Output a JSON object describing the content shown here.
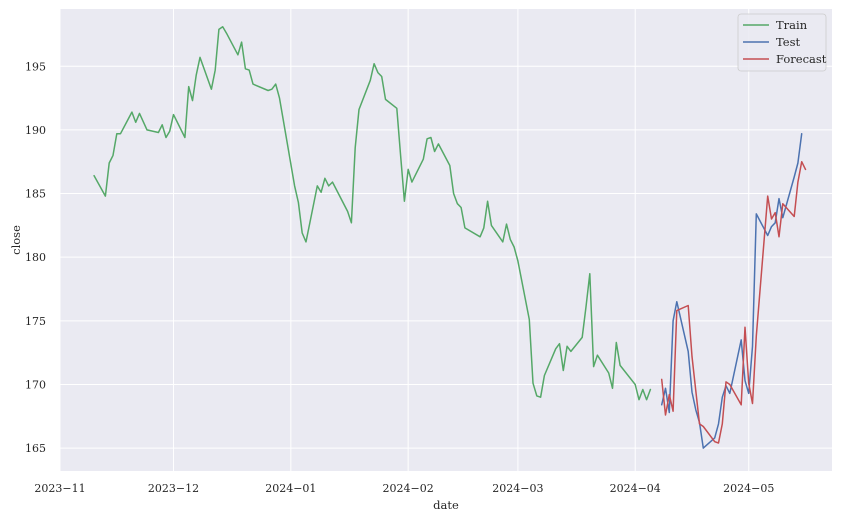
{
  "chart_data": {
    "type": "line",
    "xlabel": "date",
    "ylabel": "close",
    "xlim": [
      "2023-11-01",
      "2024-05-23"
    ],
    "ylim": [
      163.2,
      199.5
    ],
    "grid": true,
    "legend_position": "top-right",
    "x_ticks": [
      {
        "date": "2023-11-01",
        "label": "2023−11"
      },
      {
        "date": "2023-12-01",
        "label": "2023−12"
      },
      {
        "date": "2024-01-01",
        "label": "2024−01"
      },
      {
        "date": "2024-02-01",
        "label": "2024−02"
      },
      {
        "date": "2024-03-01",
        "label": "2024−03"
      },
      {
        "date": "2024-04-01",
        "label": "2024−04"
      },
      {
        "date": "2024-05-01",
        "label": "2024−05"
      }
    ],
    "y_ticks": [
      165,
      170,
      175,
      180,
      185,
      190,
      195
    ],
    "series": [
      {
        "name": "Train",
        "color": "#55a868",
        "points": [
          [
            "2023-11-10",
            186.4
          ],
          [
            "2023-11-13",
            184.8
          ],
          [
            "2023-11-14",
            187.4
          ],
          [
            "2023-11-15",
            188.0
          ],
          [
            "2023-11-16",
            189.7
          ],
          [
            "2023-11-17",
            189.7
          ],
          [
            "2023-11-20",
            191.4
          ],
          [
            "2023-11-21",
            190.6
          ],
          [
            "2023-11-22",
            191.3
          ],
          [
            "2023-11-24",
            190.0
          ],
          [
            "2023-11-27",
            189.8
          ],
          [
            "2023-11-28",
            190.4
          ],
          [
            "2023-11-29",
            189.4
          ],
          [
            "2023-11-30",
            189.9
          ],
          [
            "2023-12-01",
            191.2
          ],
          [
            "2023-12-04",
            189.4
          ],
          [
            "2023-12-05",
            193.4
          ],
          [
            "2023-12-06",
            192.3
          ],
          [
            "2023-12-07",
            194.3
          ],
          [
            "2023-12-08",
            195.7
          ],
          [
            "2023-12-11",
            193.2
          ],
          [
            "2023-12-12",
            194.7
          ],
          [
            "2023-12-13",
            197.9
          ],
          [
            "2023-12-14",
            198.1
          ],
          [
            "2023-12-15",
            197.6
          ],
          [
            "2023-12-18",
            195.9
          ],
          [
            "2023-12-19",
            196.9
          ],
          [
            "2023-12-20",
            194.8
          ],
          [
            "2023-12-21",
            194.7
          ],
          [
            "2023-12-22",
            193.6
          ],
          [
            "2023-12-26",
            193.1
          ],
          [
            "2023-12-27",
            193.2
          ],
          [
            "2023-12-28",
            193.6
          ],
          [
            "2023-12-29",
            192.5
          ],
          [
            "2024-01-02",
            185.6
          ],
          [
            "2024-01-03",
            184.3
          ],
          [
            "2024-01-04",
            181.9
          ],
          [
            "2024-01-05",
            181.2
          ],
          [
            "2024-01-08",
            185.6
          ],
          [
            "2024-01-09",
            185.1
          ],
          [
            "2024-01-10",
            186.2
          ],
          [
            "2024-01-11",
            185.6
          ],
          [
            "2024-01-12",
            185.9
          ],
          [
            "2024-01-16",
            183.6
          ],
          [
            "2024-01-17",
            182.7
          ],
          [
            "2024-01-18",
            188.6
          ],
          [
            "2024-01-19",
            191.6
          ],
          [
            "2024-01-22",
            193.9
          ],
          [
            "2024-01-23",
            195.2
          ],
          [
            "2024-01-24",
            194.5
          ],
          [
            "2024-01-25",
            194.2
          ],
          [
            "2024-01-26",
            192.4
          ],
          [
            "2024-01-29",
            191.7
          ],
          [
            "2024-01-30",
            188.0
          ],
          [
            "2024-01-31",
            184.4
          ],
          [
            "2024-02-01",
            186.9
          ],
          [
            "2024-02-02",
            185.9
          ],
          [
            "2024-02-05",
            187.7
          ],
          [
            "2024-02-06",
            189.3
          ],
          [
            "2024-02-07",
            189.4
          ],
          [
            "2024-02-08",
            188.3
          ],
          [
            "2024-02-09",
            188.9
          ],
          [
            "2024-02-12",
            187.2
          ],
          [
            "2024-02-13",
            185.0
          ],
          [
            "2024-02-14",
            184.2
          ],
          [
            "2024-02-15",
            183.9
          ],
          [
            "2024-02-16",
            182.3
          ],
          [
            "2024-02-20",
            181.6
          ],
          [
            "2024-02-21",
            182.3
          ],
          [
            "2024-02-22",
            184.4
          ],
          [
            "2024-02-23",
            182.5
          ],
          [
            "2024-02-26",
            181.2
          ],
          [
            "2024-02-27",
            182.6
          ],
          [
            "2024-02-28",
            181.4
          ],
          [
            "2024-02-29",
            180.8
          ],
          [
            "2024-03-01",
            179.7
          ],
          [
            "2024-03-04",
            175.1
          ],
          [
            "2024-03-05",
            170.1
          ],
          [
            "2024-03-06",
            169.1
          ],
          [
            "2024-03-07",
            169.0
          ],
          [
            "2024-03-08",
            170.7
          ],
          [
            "2024-03-11",
            172.8
          ],
          [
            "2024-03-12",
            173.2
          ],
          [
            "2024-03-13",
            171.1
          ],
          [
            "2024-03-14",
            173.0
          ],
          [
            "2024-03-15",
            172.6
          ],
          [
            "2024-03-18",
            173.7
          ],
          [
            "2024-03-19",
            176.1
          ],
          [
            "2024-03-20",
            178.7
          ],
          [
            "2024-03-21",
            171.4
          ],
          [
            "2024-03-22",
            172.3
          ],
          [
            "2024-03-25",
            170.9
          ],
          [
            "2024-03-26",
            169.7
          ],
          [
            "2024-03-27",
            173.3
          ],
          [
            "2024-03-28",
            171.5
          ],
          [
            "2024-04-01",
            170.0
          ],
          [
            "2024-04-02",
            168.8
          ],
          [
            "2024-04-03",
            169.6
          ],
          [
            "2024-04-04",
            168.8
          ],
          [
            "2024-04-05",
            169.6
          ]
        ]
      },
      {
        "name": "Test",
        "color": "#4c72b0",
        "points": [
          [
            "2024-04-08",
            168.4
          ],
          [
            "2024-04-09",
            169.7
          ],
          [
            "2024-04-10",
            167.8
          ],
          [
            "2024-04-11",
            175.0
          ],
          [
            "2024-04-12",
            176.5
          ],
          [
            "2024-04-15",
            172.6
          ],
          [
            "2024-04-16",
            169.4
          ],
          [
            "2024-04-17",
            168.0
          ],
          [
            "2024-04-18",
            167.0
          ],
          [
            "2024-04-19",
            165.0
          ],
          [
            "2024-04-22",
            165.8
          ],
          [
            "2024-04-23",
            166.9
          ],
          [
            "2024-04-24",
            169.0
          ],
          [
            "2024-04-25",
            169.9
          ],
          [
            "2024-04-26",
            169.3
          ],
          [
            "2024-04-29",
            173.5
          ],
          [
            "2024-04-30",
            170.3
          ],
          [
            "2024-05-01",
            169.3
          ],
          [
            "2024-05-02",
            173.0
          ],
          [
            "2024-05-03",
            183.4
          ],
          [
            "2024-05-06",
            181.7
          ],
          [
            "2024-05-07",
            182.4
          ],
          [
            "2024-05-08",
            182.7
          ],
          [
            "2024-05-09",
            184.6
          ],
          [
            "2024-05-10",
            183.1
          ],
          [
            "2024-05-13",
            186.3
          ],
          [
            "2024-05-14",
            187.4
          ],
          [
            "2024-05-15",
            189.7
          ]
        ]
      },
      {
        "name": "Forecast",
        "color": "#c44e52",
        "points": [
          [
            "2024-04-08",
            170.4
          ],
          [
            "2024-04-09",
            167.6
          ],
          [
            "2024-04-10",
            169.2
          ],
          [
            "2024-04-11",
            167.9
          ],
          [
            "2024-04-12",
            175.8
          ],
          [
            "2024-04-15",
            176.2
          ],
          [
            "2024-04-16",
            172.2
          ],
          [
            "2024-04-17",
            169.5
          ],
          [
            "2024-04-18",
            166.9
          ],
          [
            "2024-04-19",
            166.7
          ],
          [
            "2024-04-22",
            165.5
          ],
          [
            "2024-04-23",
            165.4
          ],
          [
            "2024-04-24",
            166.9
          ],
          [
            "2024-04-25",
            170.2
          ],
          [
            "2024-04-26",
            170.0
          ],
          [
            "2024-04-29",
            168.4
          ],
          [
            "2024-04-30",
            174.5
          ],
          [
            "2024-05-01",
            170.1
          ],
          [
            "2024-05-02",
            168.5
          ],
          [
            "2024-05-03",
            173.8
          ],
          [
            "2024-05-06",
            184.8
          ],
          [
            "2024-05-07",
            183.0
          ],
          [
            "2024-05-08",
            183.5
          ],
          [
            "2024-05-09",
            181.6
          ],
          [
            "2024-05-10",
            184.2
          ],
          [
            "2024-05-13",
            183.2
          ],
          [
            "2024-05-14",
            185.9
          ],
          [
            "2024-05-15",
            187.5
          ],
          [
            "2024-05-16",
            186.9
          ]
        ]
      }
    ]
  }
}
